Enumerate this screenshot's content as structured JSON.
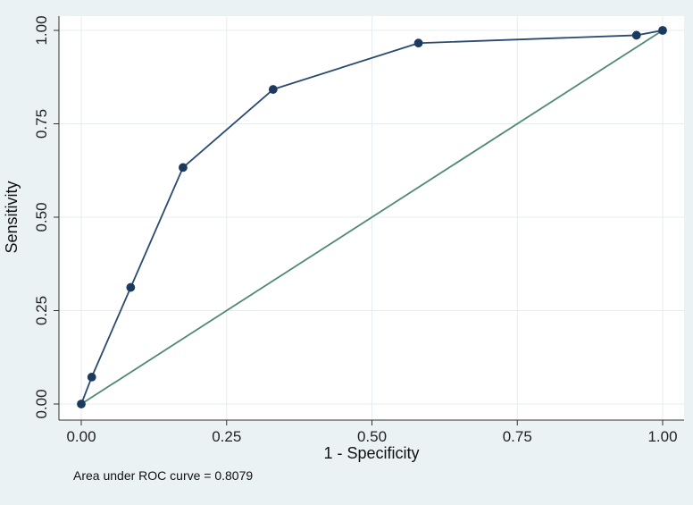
{
  "chart_data": {
    "type": "line",
    "xlabel": "1 - Specificity",
    "ylabel": "Sensitivity",
    "xlim": [
      0,
      1
    ],
    "ylim": [
      0,
      1
    ],
    "x_ticks": [
      "0.00",
      "0.25",
      "0.50",
      "0.75",
      "1.00"
    ],
    "y_ticks": [
      "0.00",
      "0.25",
      "0.50",
      "0.75",
      "1.00"
    ],
    "grid": true,
    "series": [
      {
        "x": [
          0.0,
          0.018,
          0.085,
          0.175,
          0.33,
          0.58,
          0.955,
          1.0
        ],
        "y": [
          0.0,
          0.072,
          0.312,
          0.633,
          0.842,
          0.966,
          0.987,
          1.0
        ],
        "color": "#2b4a6f",
        "markers": true
      },
      {
        "x": [
          0,
          1
        ],
        "y": [
          0,
          1
        ],
        "color": "#4f8a72",
        "markers": false
      }
    ],
    "annotation": "Area under ROC curve = 0.8079"
  }
}
